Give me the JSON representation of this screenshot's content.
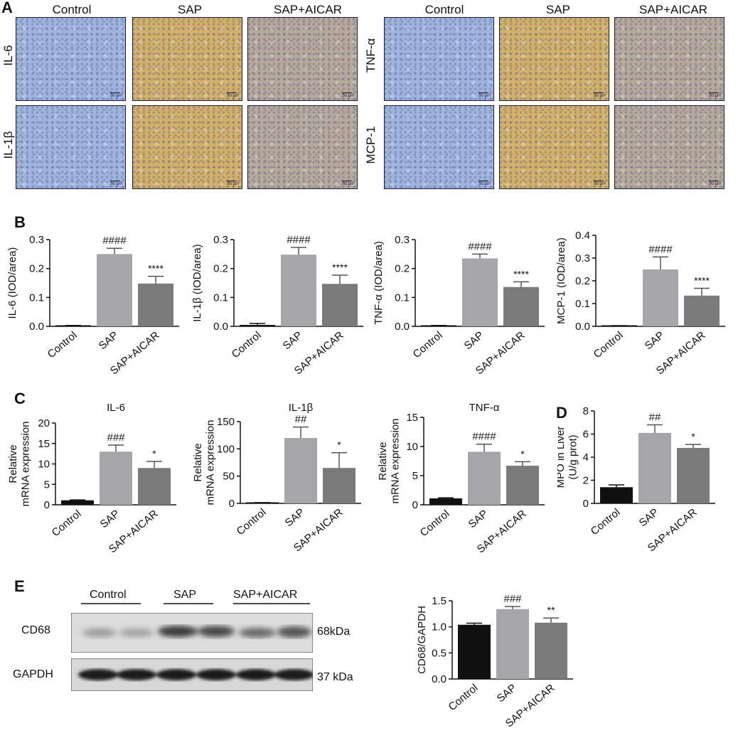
{
  "panel_a": {
    "letter": "A",
    "groups": [
      "Control",
      "SAP",
      "SAP+AICAR"
    ],
    "rows_left": [
      "IL-6",
      "IL-1β"
    ],
    "rows_right": [
      "TNF-α",
      "MCP-1"
    ],
    "scale_bar": "50 μm",
    "stain_colors": {
      "control": "#9fb4dc",
      "sap": "#d2b06a",
      "sap_aicar": "#b7a99a"
    }
  },
  "panel_b": {
    "letter": "B"
  },
  "panel_c": {
    "letter": "C"
  },
  "panel_d": {
    "letter": "D"
  },
  "panel_e": {
    "letter": "E",
    "groups": [
      "Control",
      "SAP",
      "SAP+AICAR"
    ],
    "bands": [
      {
        "name": "CD68",
        "size": "68kDa"
      },
      {
        "name": "GAPDH",
        "size": "37 kDa"
      }
    ]
  },
  "chart_data": [
    {
      "id": "b1",
      "type": "bar",
      "categories": [
        "Control",
        "SAP",
        "SAP+AICAR"
      ],
      "values": [
        0.002,
        0.25,
        0.148
      ],
      "errors": [
        0.001,
        0.02,
        0.025
      ],
      "ylabel": "IL-6 (IOD/area)",
      "ylim": [
        0,
        0.3
      ],
      "yticks": [
        "0.0",
        "0.1",
        "0.2",
        "0.3"
      ],
      "annotations": [
        "",
        "####",
        "****"
      ],
      "title": ""
    },
    {
      "id": "b2",
      "type": "bar",
      "categories": [
        "Control",
        "SAP",
        "SAP+AICAR"
      ],
      "values": [
        0.005,
        0.248,
        0.147
      ],
      "errors": [
        0.005,
        0.025,
        0.03
      ],
      "ylabel": "IL-1β (IOD/area)",
      "ylim": [
        0,
        0.3
      ],
      "yticks": [
        "0.0",
        "0.1",
        "0.2",
        "0.3"
      ],
      "annotations": [
        "",
        "####",
        "****"
      ],
      "title": ""
    },
    {
      "id": "b3",
      "type": "bar",
      "categories": [
        "Control",
        "SAP",
        "SAP+AICAR"
      ],
      "values": [
        0.002,
        0.235,
        0.136
      ],
      "errors": [
        0.001,
        0.015,
        0.018
      ],
      "ylabel": "TNF-α (IOD/area)",
      "ylim": [
        0,
        0.3
      ],
      "yticks": [
        "0.0",
        "0.1",
        "0.2",
        "0.3"
      ],
      "annotations": [
        "",
        "####",
        "****"
      ],
      "title": ""
    },
    {
      "id": "b4",
      "type": "bar",
      "categories": [
        "Control",
        "SAP",
        "SAP+AICAR"
      ],
      "values": [
        0.002,
        0.25,
        0.135
      ],
      "errors": [
        0.001,
        0.055,
        0.032
      ],
      "ylabel": "MCP-1 (IOD/area)",
      "ylim": [
        0,
        0.4
      ],
      "yticks": [
        "0.0",
        "0.1",
        "0.2",
        "0.3",
        "0.4"
      ],
      "annotations": [
        "",
        "####",
        "****"
      ],
      "title": ""
    },
    {
      "id": "c1",
      "type": "bar",
      "categories": [
        "Control",
        "SAP",
        "SAP+AICAR"
      ],
      "values": [
        1.1,
        13,
        9
      ],
      "errors": [
        0.1,
        1.6,
        1.6
      ],
      "ylabel": "Relative mRNA expression",
      "ylim": [
        0,
        20
      ],
      "yticks": [
        "0",
        "5",
        "10",
        "15",
        "20"
      ],
      "annotations": [
        "",
        "###",
        "*"
      ],
      "title": "IL-6"
    },
    {
      "id": "c2",
      "type": "bar",
      "categories": [
        "Control",
        "SAP",
        "SAP+AICAR"
      ],
      "values": [
        1,
        120,
        65
      ],
      "errors": [
        0.5,
        20,
        28
      ],
      "ylabel": "Relative mRNA expression",
      "ylim": [
        0,
        150
      ],
      "yticks": [
        "0",
        "50",
        "100",
        "150"
      ],
      "annotations": [
        "",
        "##",
        "*"
      ],
      "title": "IL-1β"
    },
    {
      "id": "c3",
      "type": "bar",
      "categories": [
        "Control",
        "SAP",
        "SAP+AICAR"
      ],
      "values": [
        1.1,
        9.1,
        6.7
      ],
      "errors": [
        0.1,
        1.3,
        0.7
      ],
      "ylabel": "Relative mRNA expression",
      "ylim": [
        0,
        15
      ],
      "yticks": [
        "0",
        "5",
        "10",
        "15"
      ],
      "annotations": [
        "",
        "####",
        "*"
      ],
      "title": "TNF-α"
    },
    {
      "id": "d1",
      "type": "bar",
      "categories": [
        "Control",
        "SAP",
        "SAP+AICAR"
      ],
      "values": [
        1.4,
        6.1,
        4.8
      ],
      "errors": [
        0.2,
        0.7,
        0.3
      ],
      "ylabel": "MPO in Liver (U/g prot)",
      "ylim": [
        0,
        8
      ],
      "yticks": [
        "0",
        "2",
        "4",
        "6",
        "8"
      ],
      "annotations": [
        "",
        "##",
        "*"
      ],
      "title": ""
    },
    {
      "id": "e1",
      "type": "bar",
      "categories": [
        "Control",
        "SAP",
        "SAP+AICAR"
      ],
      "values": [
        1.04,
        1.34,
        1.08
      ],
      "errors": [
        0.03,
        0.05,
        0.09
      ],
      "ylabel": "CD68/GAPDH",
      "ylim": [
        0,
        1.5
      ],
      "yticks": [
        "0.0",
        "0.5",
        "1.0",
        "1.5"
      ],
      "annotations": [
        "",
        "###",
        "**"
      ],
      "title": ""
    }
  ]
}
